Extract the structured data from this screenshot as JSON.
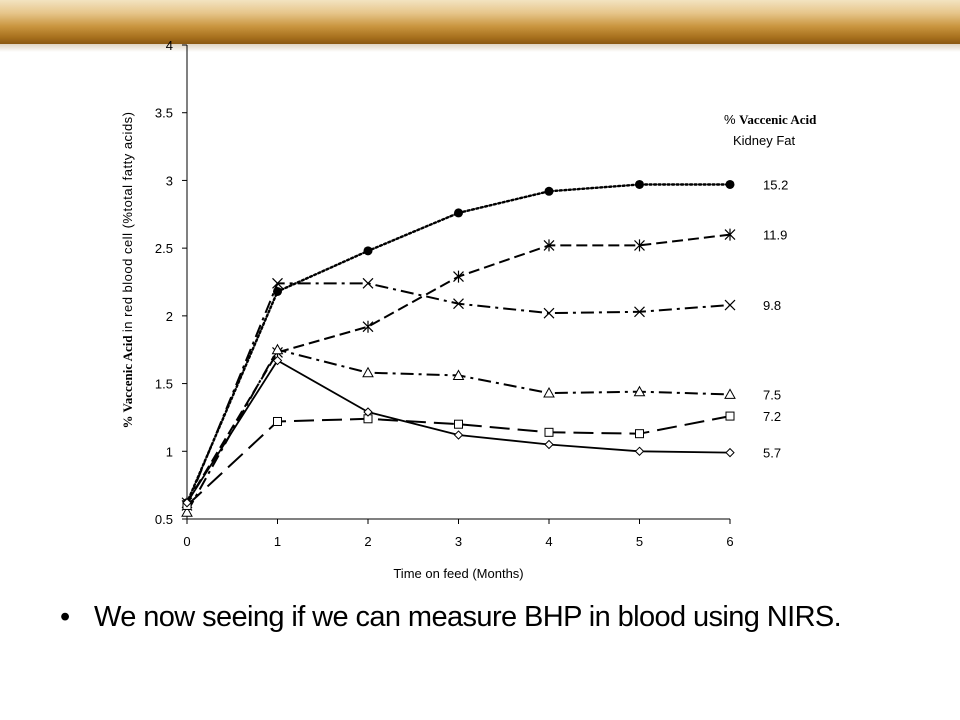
{
  "chart_data": {
    "type": "line",
    "x": [
      0,
      1,
      2,
      3,
      4,
      5,
      6
    ],
    "xlim": [
      0,
      6
    ],
    "ylim": [
      0.5,
      4
    ],
    "xticks": [
      "0",
      "1",
      "2",
      "3",
      "4",
      "5",
      "6"
    ],
    "yticks": [
      "0.5",
      "1",
      "1.5",
      "2",
      "2.5",
      "3",
      "3.5",
      "4"
    ],
    "xlabel": "Time on feed (Months)",
    "ylabel_bold": "% Vaccenic Acid",
    "ylabel_rest": "in red blood cell (%total fatty acids)",
    "legend_title_pct": "%",
    "legend_title_bold": "Vaccenic Acid",
    "legend_title_line2": "Kidney Fat",
    "grid": false,
    "series": [
      {
        "name": "15.2",
        "marker": "filled-circle",
        "line": "dotted",
        "values": [
          0.62,
          2.18,
          2.48,
          2.76,
          2.92,
          2.97,
          2.97
        ]
      },
      {
        "name": "11.9",
        "marker": "star",
        "line": "dashed",
        "values": [
          0.62,
          1.73,
          1.92,
          2.29,
          2.52,
          2.52,
          2.6
        ]
      },
      {
        "name": "9.8",
        "marker": "x",
        "line": "dash-dot",
        "values": [
          0.6,
          2.24,
          2.24,
          2.09,
          2.02,
          2.03,
          2.08
        ]
      },
      {
        "name": "7.5",
        "marker": "triangle",
        "line": "dash-dot",
        "values": [
          0.55,
          1.75,
          1.58,
          1.56,
          1.43,
          1.44,
          1.42
        ]
      },
      {
        "name": "7.2",
        "marker": "square",
        "line": "long-dash",
        "values": [
          0.6,
          1.22,
          1.24,
          1.2,
          1.14,
          1.13,
          1.26
        ]
      },
      {
        "name": "5.7",
        "marker": "diamond",
        "line": "solid",
        "values": [
          0.62,
          1.67,
          1.29,
          1.12,
          1.05,
          1.0,
          0.99
        ]
      }
    ]
  },
  "bullet": {
    "text": "We now seeing if we can measure BHP in blood using NIRS."
  }
}
